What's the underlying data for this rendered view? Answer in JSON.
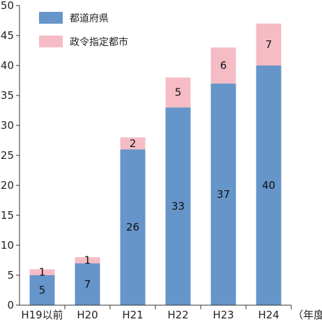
{
  "chart_data": {
    "type": "bar",
    "stacked": true,
    "categories": [
      "H19以前",
      "H20",
      "H21",
      "H22",
      "H23",
      "H24"
    ],
    "series": [
      {
        "name": "都道府県",
        "color": "#6595c9",
        "values": [
          5,
          7,
          26,
          33,
          37,
          40
        ]
      },
      {
        "name": "政令指定都市",
        "color": "#f5bcc6",
        "values": [
          1,
          1,
          2,
          5,
          6,
          7
        ]
      }
    ],
    "ylim": [
      0,
      50
    ],
    "yticks": [
      0,
      5,
      10,
      15,
      20,
      25,
      30,
      35,
      40,
      45,
      50
    ],
    "xunit": "（年度）",
    "grid": false,
    "legend": "top-left"
  }
}
